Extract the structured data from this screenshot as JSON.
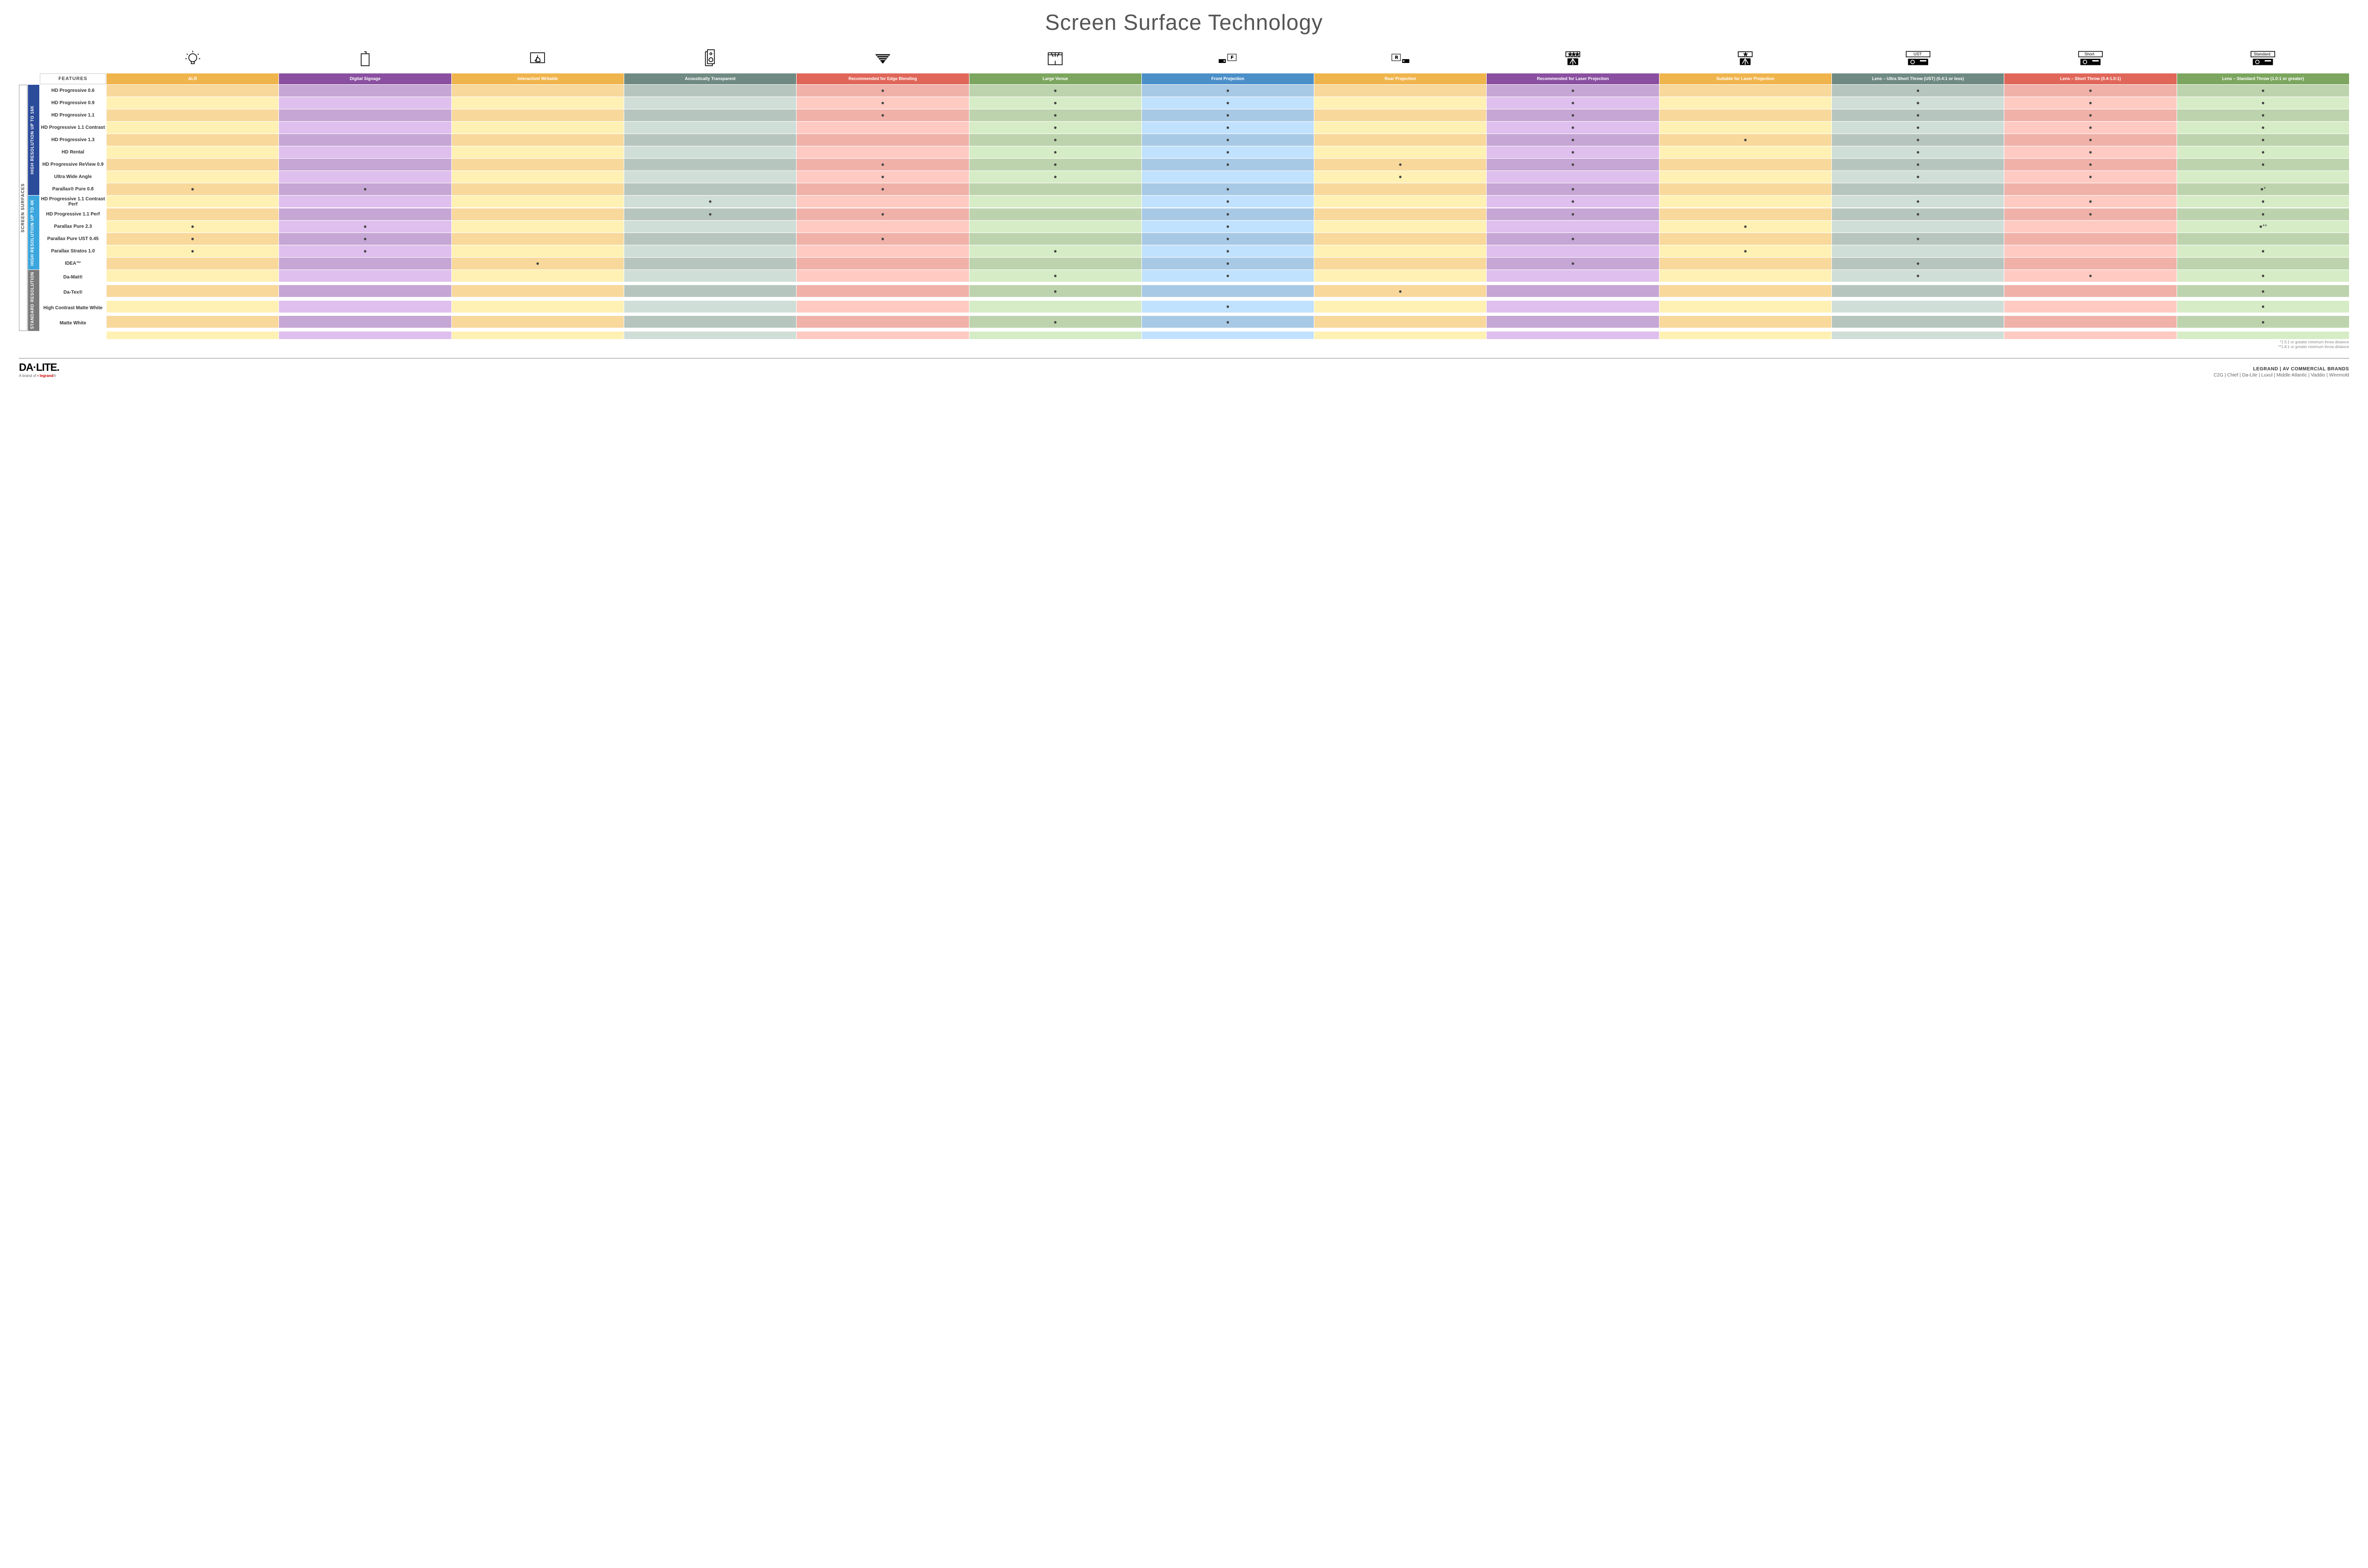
{
  "title": "Screen Surface Technology",
  "sideLabel": "SCREEN SURFACES",
  "featuresHeader": "FEATURES",
  "categories": [
    {
      "label": "HIGH RESOLUTION UP TO 16K",
      "color": "#2b4b9b",
      "rows": 9
    },
    {
      "label": "HIGH RESOLUTION UP TO 4K",
      "color": "#3aa6dd",
      "rows": 6
    },
    {
      "label": "STANDARD RESOLUTION",
      "color": "#7a7a7a",
      "rows": 4
    }
  ],
  "columns": [
    {
      "label": "ALR",
      "color": "#f0b44c",
      "alt": "#f8d89b",
      "icon": "bulb"
    },
    {
      "label": "Digital Signage",
      "color": "#8a4fa0",
      "alt": "#c6a6d4",
      "icon": "signage"
    },
    {
      "label": "Interactive/ Writable",
      "color": "#f0b44c",
      "alt": "#f8d89b",
      "icon": "touch"
    },
    {
      "label": "Acoustically Transparent",
      "color": "#6f8a82",
      "alt": "#b7c5bf",
      "icon": "speaker"
    },
    {
      "label": "Recommended for Edge Blending",
      "color": "#e06659",
      "alt": "#f0b1a9",
      "icon": "blend"
    },
    {
      "label": "Large Venue",
      "color": "#7ca65f",
      "alt": "#bdd3ad",
      "icon": "venue"
    },
    {
      "label": "Front Projection",
      "color": "#4b8fc9",
      "alt": "#a8c9e5",
      "icon": "front"
    },
    {
      "label": "Rear Projection",
      "color": "#f0b44c",
      "alt": "#f8d89b",
      "icon": "rear"
    },
    {
      "label": "Recommended for Laser Projection",
      "color": "#8a4fa0",
      "alt": "#c6a6d4",
      "icon": "laser-rec"
    },
    {
      "label": "Suitable for Laser Projection",
      "color": "#f0b44c",
      "alt": "#f8d89b",
      "icon": "laser-suit"
    },
    {
      "label": "Lens – Ultra Short Throw (UST) (0.4:1 or less)",
      "color": "#6f8a82",
      "alt": "#b7c5bf",
      "icon": "ust"
    },
    {
      "label": "Lens – Short Throw (0.4-1.0:1)",
      "color": "#e06659",
      "alt": "#f0b1a9",
      "icon": "short"
    },
    {
      "label": "Lens – Standard Throw (1.0:1 or greater)",
      "color": "#7ca65f",
      "alt": "#bdd3ad",
      "icon": "standard"
    }
  ],
  "rows": [
    {
      "label": "HD Progressive 0.6",
      "marks": [
        "",
        "",
        "",
        "",
        "●",
        "●",
        "●",
        "",
        "●",
        "",
        "●",
        "●",
        "●"
      ]
    },
    {
      "label": "HD Progressive 0.9",
      "marks": [
        "",
        "",
        "",
        "",
        "●",
        "●",
        "●",
        "",
        "●",
        "",
        "●",
        "●",
        "●"
      ]
    },
    {
      "label": "HD Progressive 1.1",
      "marks": [
        "",
        "",
        "",
        "",
        "●",
        "●",
        "●",
        "",
        "●",
        "",
        "●",
        "●",
        "●"
      ]
    },
    {
      "label": "HD Progressive 1.1 Contrast",
      "marks": [
        "",
        "",
        "",
        "",
        "",
        "●",
        "●",
        "",
        "●",
        "",
        "●",
        "●",
        "●"
      ]
    },
    {
      "label": "HD Progressive 1.3",
      "marks": [
        "",
        "",
        "",
        "",
        "",
        "●",
        "●",
        "",
        "●",
        "●",
        "●",
        "●",
        "●"
      ]
    },
    {
      "label": "HD Rental",
      "marks": [
        "",
        "",
        "",
        "",
        "",
        "●",
        "●",
        "",
        "●",
        "",
        "●",
        "●",
        "●"
      ]
    },
    {
      "label": "HD Progressive ReView 0.9",
      "marks": [
        "",
        "",
        "",
        "",
        "●",
        "●",
        "●",
        "●",
        "●",
        "",
        "●",
        "●",
        "●"
      ]
    },
    {
      "label": "Ultra Wide Angle",
      "marks": [
        "",
        "",
        "",
        "",
        "●",
        "●",
        "",
        "●",
        "",
        "",
        "●",
        "●",
        ""
      ]
    },
    {
      "label": "Parallax® Pure 0.8",
      "marks": [
        "●",
        "●",
        "",
        "",
        "●",
        "",
        "●",
        "",
        "●",
        "",
        "",
        "",
        "●*"
      ]
    },
    {
      "label": "HD Progressive 1.1 Contrast Perf",
      "marks": [
        "",
        "",
        "",
        "●",
        "",
        "",
        "●",
        "",
        "●",
        "",
        "●",
        "●",
        "●"
      ]
    },
    {
      "label": "HD Progressive 1.1 Perf",
      "marks": [
        "",
        "",
        "",
        "●",
        "●",
        "",
        "●",
        "",
        "●",
        "",
        "●",
        "●",
        "●"
      ]
    },
    {
      "label": "Parallax Pure 2.3",
      "marks": [
        "●",
        "●",
        "",
        "",
        "",
        "",
        "●",
        "",
        "",
        "●",
        "",
        "",
        "●**"
      ]
    },
    {
      "label": "Parallax Pure UST 0.45",
      "marks": [
        "●",
        "●",
        "",
        "",
        "●",
        "",
        "●",
        "",
        "●",
        "",
        "●",
        "",
        ""
      ]
    },
    {
      "label": "Parallax Stratos 1.0",
      "marks": [
        "●",
        "●",
        "",
        "",
        "",
        "●",
        "●",
        "",
        "",
        "●",
        "",
        "",
        "●"
      ]
    },
    {
      "label": "IDEA™",
      "marks": [
        "",
        "",
        "●",
        "",
        "",
        "",
        "●",
        "",
        "●",
        "",
        "●",
        "",
        ""
      ]
    },
    {
      "label": "Da-Mat®",
      "marks": [
        "",
        "",
        "",
        "",
        "",
        "●",
        "●",
        "",
        "",
        "",
        "●",
        "●",
        "●"
      ]
    },
    {
      "label": "Da-Tex®",
      "marks": [
        "",
        "",
        "",
        "",
        "",
        "●",
        "",
        "●",
        "",
        "",
        "",
        "",
        "●"
      ]
    },
    {
      "label": "High Contrast Matte White",
      "marks": [
        "",
        "",
        "",
        "",
        "",
        "",
        "●",
        "",
        "",
        "",
        "",
        "",
        "●"
      ]
    },
    {
      "label": "Matte White",
      "marks": [
        "",
        "",
        "",
        "",
        "",
        "●",
        "●",
        "",
        "",
        "",
        "",
        "",
        "●"
      ]
    }
  ],
  "footnotes": [
    "*1.5:1 or greater minimum throw distance",
    "**1.8:1 or greater minimum throw distance"
  ],
  "footer": {
    "logo": "DA·LITE.",
    "tagline": "A brand of ▪ legrand®",
    "brandsTitle": "LEGRAND | AV COMMERCIAL BRANDS",
    "brandsList": "C2G  |  Chief  |  Da-Lite  |  Luxul  |  Middle Atlantic  |  Vaddio  |  Wiremold"
  }
}
